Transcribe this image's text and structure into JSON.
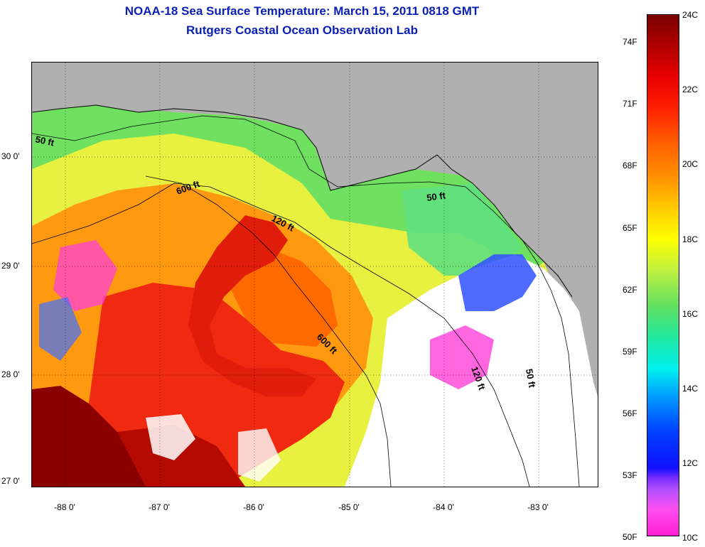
{
  "header": {
    "title": "NOAA-18 Sea Surface Temperature:  March 15, 2011 0818 GMT",
    "subtitle": "Rutgers Coastal Ocean Observation Lab"
  },
  "map": {
    "lat_labels": [
      "30 0'",
      "29 0'",
      "28 0'",
      "27 0'"
    ],
    "lon_labels": [
      "-88 0'",
      "-87 0'",
      "-86 0'",
      "-85 0'",
      "-84 0'",
      "-83 0'"
    ],
    "contour_labels": [
      "50 ft",
      "600 ft",
      "120 ft",
      "50 ft",
      "600 ft",
      "120 ft",
      "50 ft"
    ],
    "land_color": "#b0b0b0",
    "cloud_color": "#ffffff"
  },
  "colorbar": {
    "fahrenheit_labels": [
      "74F",
      "71F",
      "68F",
      "65F",
      "62F",
      "59F",
      "56F",
      "53F",
      "50F"
    ],
    "celsius_labels": [
      "24C",
      "22C",
      "20C",
      "18C",
      "16C",
      "14C",
      "12C",
      "10C"
    ],
    "min_color": "#ff1fd2",
    "max_color": "#7a0000"
  }
}
